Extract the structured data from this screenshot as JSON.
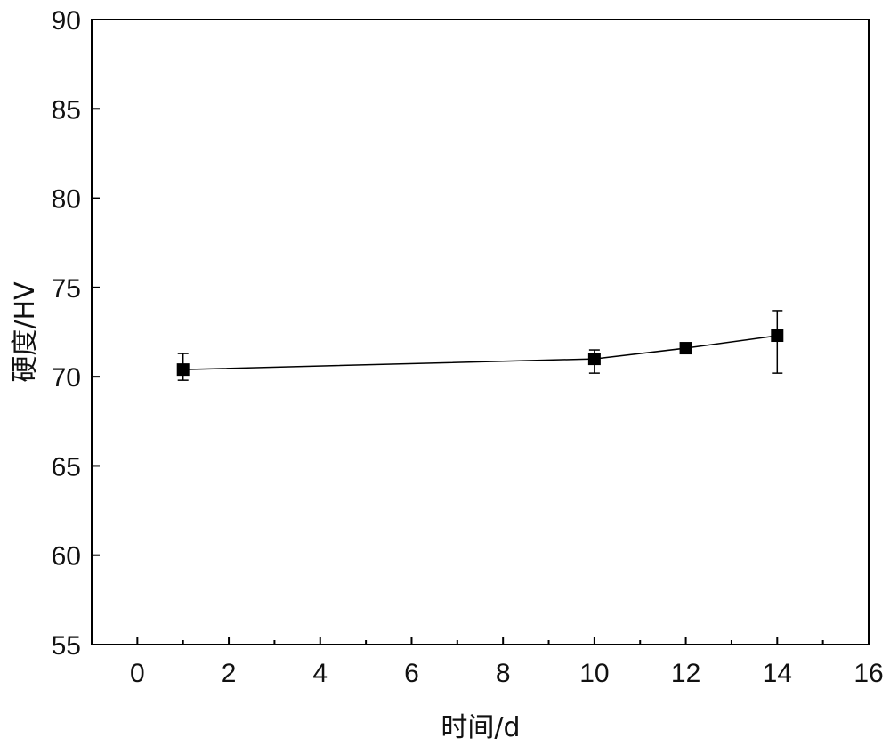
{
  "chart_data": {
    "type": "line",
    "title": "",
    "xlabel": "时间/d",
    "ylabel": "硬度/HV",
    "xlim": [
      -1,
      16
    ],
    "ylim": [
      55,
      90
    ],
    "xticks": [
      0,
      2,
      4,
      6,
      8,
      10,
      12,
      14,
      16
    ],
    "yticks": [
      55,
      60,
      65,
      70,
      75,
      80,
      85,
      90
    ],
    "grid": false,
    "legend": "none",
    "marker": "square",
    "color": "#000000",
    "series": [
      {
        "x": [
          1,
          10,
          12,
          14
        ],
        "y": [
          70.4,
          71.0,
          71.6,
          72.3
        ],
        "yerr_low": [
          69.8,
          70.2,
          71.6,
          70.2
        ],
        "yerr_high": [
          71.3,
          71.5,
          71.6,
          73.7
        ]
      }
    ]
  }
}
